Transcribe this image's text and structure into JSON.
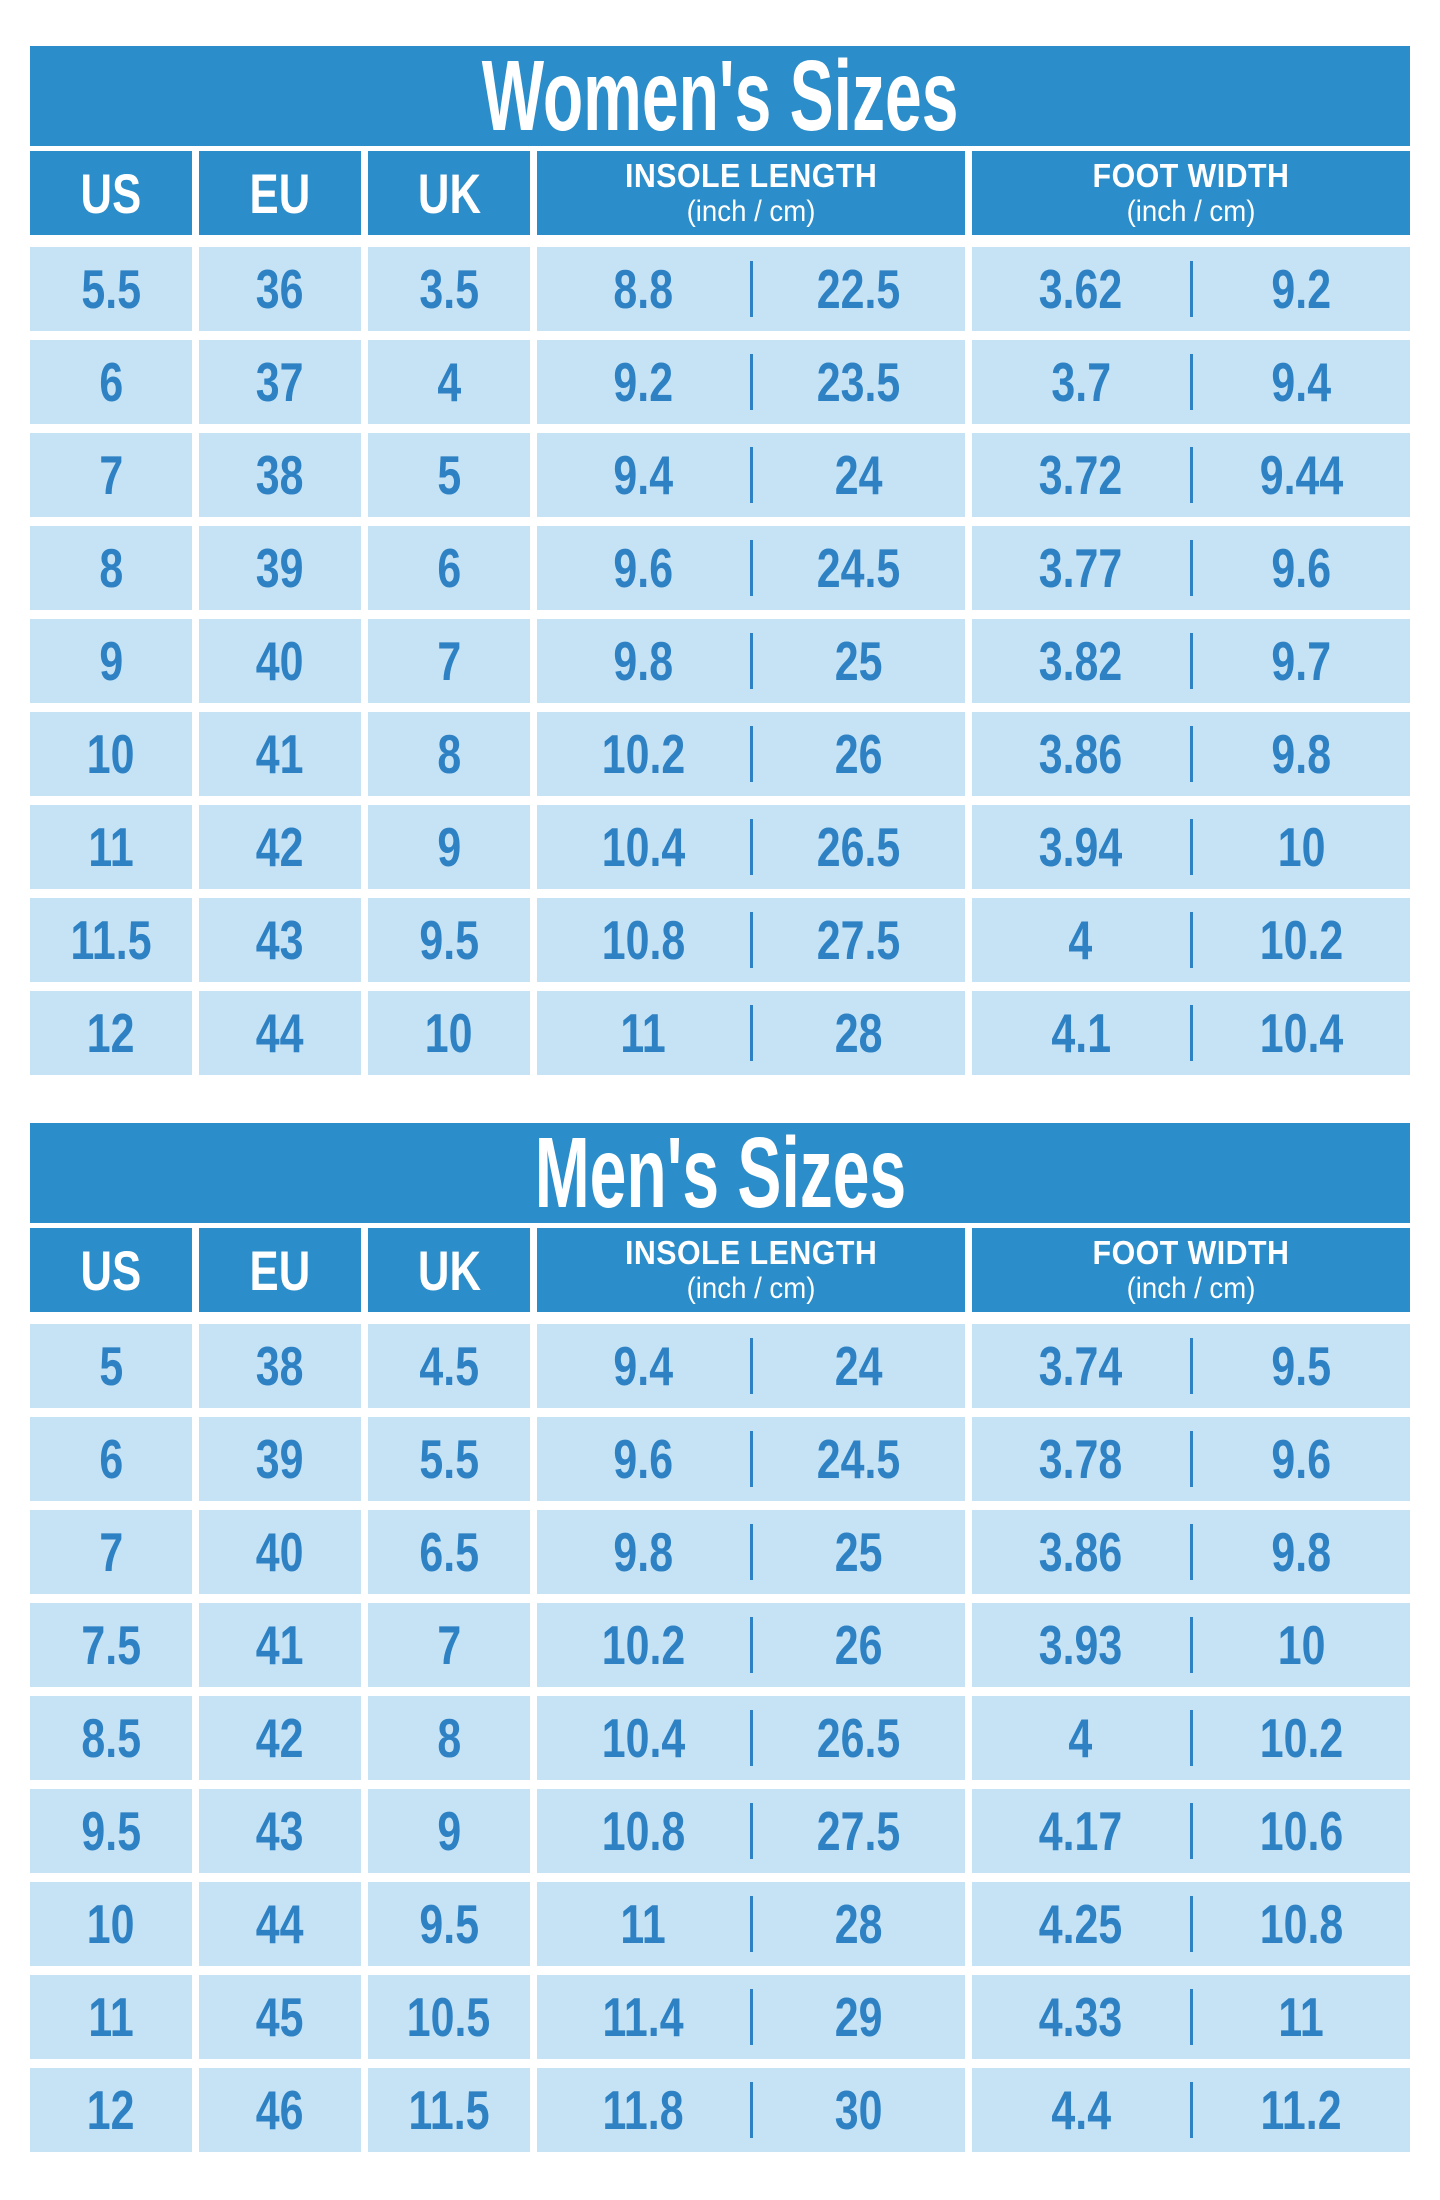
{
  "colors": {
    "header_blue": "#2B8DC9",
    "row_bg": "#C6E3F6",
    "value_blue": "#2E82C4",
    "page_bg": "#FFFFFF"
  },
  "chart_data": [
    {
      "type": "table",
      "title": "Women's Sizes",
      "columns": [
        "US",
        "EU",
        "UK",
        "INSOLE LENGTH (inch / cm)",
        "FOOT WIDTH (inch / cm)"
      ],
      "header": {
        "us": "US",
        "eu": "EU",
        "uk": "UK",
        "insole": {
          "label": "INSOLE LENGTH",
          "sub": "(inch / cm)"
        },
        "foot": {
          "label": "FOOT WIDTH",
          "sub": "(inch / cm)"
        }
      },
      "rows": [
        [
          "5.5",
          "36",
          "3.5",
          "8.8",
          "22.5",
          "3.62",
          "9.2"
        ],
        [
          "6",
          "37",
          "4",
          "9.2",
          "23.5",
          "3.7",
          "9.4"
        ],
        [
          "7",
          "38",
          "5",
          "9.4",
          "24",
          "3.72",
          "9.44"
        ],
        [
          "8",
          "39",
          "6",
          "9.6",
          "24.5",
          "3.77",
          "9.6"
        ],
        [
          "9",
          "40",
          "7",
          "9.8",
          "25",
          "3.82",
          "9.7"
        ],
        [
          "10",
          "41",
          "8",
          "10.2",
          "26",
          "3.86",
          "9.8"
        ],
        [
          "11",
          "42",
          "9",
          "10.4",
          "26.5",
          "3.94",
          "10"
        ],
        [
          "11.5",
          "43",
          "9.5",
          "10.8",
          "27.5",
          "4",
          "10.2"
        ],
        [
          "12",
          "44",
          "10",
          "11",
          "28",
          "4.1",
          "10.4"
        ]
      ]
    },
    {
      "type": "table",
      "title": "Men's Sizes",
      "columns": [
        "US",
        "EU",
        "UK",
        "INSOLE LENGTH (inch / cm)",
        "FOOT WIDTH (inch / cm)"
      ],
      "header": {
        "us": "US",
        "eu": "EU",
        "uk": "UK",
        "insole": {
          "label": "INSOLE LENGTH",
          "sub": "(inch / cm)"
        },
        "foot": {
          "label": "FOOT WIDTH",
          "sub": "(inch / cm)"
        }
      },
      "rows": [
        [
          "5",
          "38",
          "4.5",
          "9.4",
          "24",
          "3.74",
          "9.5"
        ],
        [
          "6",
          "39",
          "5.5",
          "9.6",
          "24.5",
          "3.78",
          "9.6"
        ],
        [
          "7",
          "40",
          "6.5",
          "9.8",
          "25",
          "3.86",
          "9.8"
        ],
        [
          "7.5",
          "41",
          "7",
          "10.2",
          "26",
          "3.93",
          "10"
        ],
        [
          "8.5",
          "42",
          "8",
          "10.4",
          "26.5",
          "4",
          "10.2"
        ],
        [
          "9.5",
          "43",
          "9",
          "10.8",
          "27.5",
          "4.17",
          "10.6"
        ],
        [
          "10",
          "44",
          "9.5",
          "11",
          "28",
          "4.25",
          "10.8"
        ],
        [
          "11",
          "45",
          "10.5",
          "11.4",
          "29",
          "4.33",
          "11"
        ],
        [
          "12",
          "46",
          "11.5",
          "11.8",
          "30",
          "4.4",
          "11.2"
        ]
      ]
    }
  ]
}
